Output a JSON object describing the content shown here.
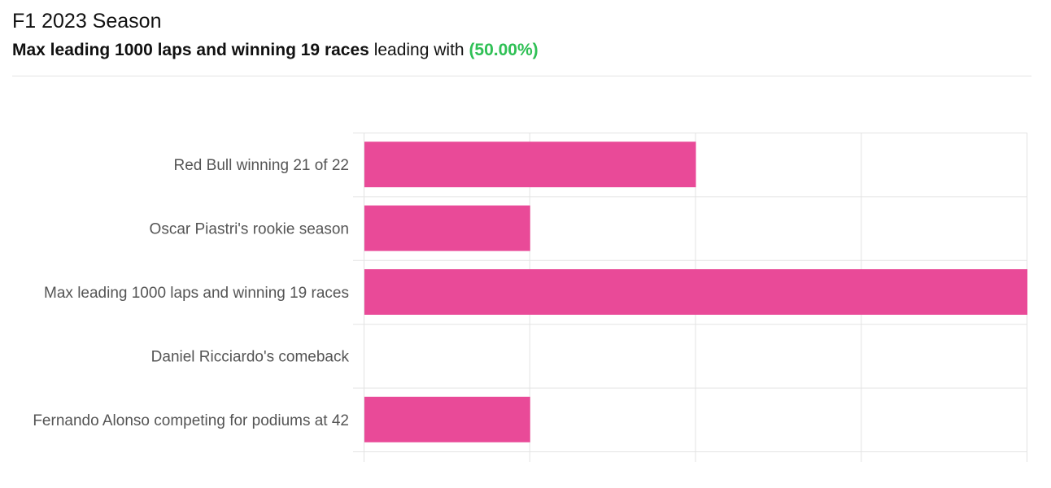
{
  "header": {
    "title": "F1 2023 Season",
    "leader_name": "Max leading 1000 laps and winning 19 races",
    "leading_text": "leading with",
    "leader_percent": "(50.00%)"
  },
  "colors": {
    "bar": "#e94a98",
    "percent": "#2fc055",
    "grid": "#e3e3e3",
    "label": "#555555"
  },
  "chart_data": {
    "type": "bar",
    "orientation": "horizontal",
    "categories": [
      "Red Bull winning 21 of 22",
      "Oscar Piastri's rookie season",
      "Max leading 1000 laps and winning 19 races",
      "Daniel Ricciardo's comeback",
      "Fernando Alonso competing for podiums at 42"
    ],
    "values": [
      2,
      1,
      4,
      0,
      1
    ],
    "xlim": [
      0,
      4
    ],
    "grid": true,
    "tick_labels_shown": false,
    "title": "",
    "xlabel": "",
    "ylabel": ""
  }
}
